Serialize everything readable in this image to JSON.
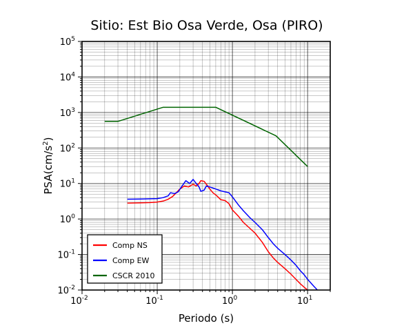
{
  "chart_data": {
    "type": "line",
    "title": "Sitio: Est Bio Osa Verde, Osa (PIRO)",
    "xlabel": "Periodo (s)",
    "ylabel_base": "PSA(cm/s",
    "ylabel_sup": "2",
    "ylabel_end": ")",
    "x_scale": "log",
    "y_scale": "log",
    "xlim": [
      0.01,
      20
    ],
    "ylim": [
      0.01,
      100000
    ],
    "grid": true,
    "legend_position": "bottom-left",
    "x_ticks": [
      {
        "base": "10",
        "exp": "-2",
        "value": 0.01
      },
      {
        "base": "10",
        "exp": "-1",
        "value": 0.1
      },
      {
        "base": "10",
        "exp": "0",
        "value": 1
      },
      {
        "base": "10",
        "exp": "1",
        "value": 10
      }
    ],
    "y_ticks": [
      {
        "base": "10",
        "exp": "-2",
        "value": 0.01
      },
      {
        "base": "10",
        "exp": "-1",
        "value": 0.1
      },
      {
        "base": "10",
        "exp": "0",
        "value": 1
      },
      {
        "base": "10",
        "exp": "1",
        "value": 10
      },
      {
        "base": "10",
        "exp": "2",
        "value": 100
      },
      {
        "base": "10",
        "exp": "3",
        "value": 1000
      },
      {
        "base": "10",
        "exp": "4",
        "value": 10000
      },
      {
        "base": "10",
        "exp": "5",
        "value": 100000
      }
    ],
    "series": [
      {
        "name": "Comp NS",
        "color": "#ff0000",
        "points": [
          [
            0.04,
            2.8
          ],
          [
            0.06,
            2.85
          ],
          [
            0.08,
            2.9
          ],
          [
            0.1,
            3.0
          ],
          [
            0.12,
            3.2
          ],
          [
            0.14,
            3.6
          ],
          [
            0.16,
            4.3
          ],
          [
            0.18,
            5.5
          ],
          [
            0.2,
            7.0
          ],
          [
            0.23,
            8.5
          ],
          [
            0.26,
            8.0
          ],
          [
            0.3,
            9.5
          ],
          [
            0.33,
            8.5
          ],
          [
            0.36,
            10.0
          ],
          [
            0.38,
            12.0
          ],
          [
            0.42,
            11.5
          ],
          [
            0.46,
            9.0
          ],
          [
            0.5,
            7.0
          ],
          [
            0.55,
            5.5
          ],
          [
            0.62,
            4.5
          ],
          [
            0.7,
            3.5
          ],
          [
            0.8,
            3.3
          ],
          [
            0.9,
            2.7
          ],
          [
            1.0,
            1.8
          ],
          [
            1.2,
            1.2
          ],
          [
            1.4,
            0.8
          ],
          [
            1.7,
            0.55
          ],
          [
            2.0,
            0.4
          ],
          [
            2.5,
            0.22
          ],
          [
            3.0,
            0.12
          ],
          [
            3.5,
            0.08
          ],
          [
            4.0,
            0.06
          ],
          [
            5.0,
            0.04
          ],
          [
            6.0,
            0.028
          ],
          [
            7.0,
            0.02
          ],
          [
            8.0,
            0.015
          ],
          [
            9.0,
            0.012
          ],
          [
            10.0,
            0.01
          ]
        ]
      },
      {
        "name": "Comp EW",
        "color": "#0000ff",
        "points": [
          [
            0.04,
            3.6
          ],
          [
            0.06,
            3.65
          ],
          [
            0.08,
            3.7
          ],
          [
            0.1,
            3.75
          ],
          [
            0.12,
            4.0
          ],
          [
            0.14,
            4.5
          ],
          [
            0.15,
            5.5
          ],
          [
            0.17,
            5.2
          ],
          [
            0.19,
            5.8
          ],
          [
            0.21,
            8.0
          ],
          [
            0.24,
            12.0
          ],
          [
            0.27,
            10.0
          ],
          [
            0.3,
            13.0
          ],
          [
            0.33,
            10.0
          ],
          [
            0.36,
            8.0
          ],
          [
            0.38,
            6.0
          ],
          [
            0.42,
            6.5
          ],
          [
            0.45,
            8.5
          ],
          [
            0.5,
            8.0
          ],
          [
            0.6,
            7.0
          ],
          [
            0.7,
            6.2
          ],
          [
            0.8,
            5.8
          ],
          [
            0.9,
            5.5
          ],
          [
            1.0,
            4.2
          ],
          [
            1.2,
            2.5
          ],
          [
            1.4,
            1.7
          ],
          [
            1.7,
            1.1
          ],
          [
            2.0,
            0.8
          ],
          [
            2.5,
            0.5
          ],
          [
            3.0,
            0.3
          ],
          [
            3.5,
            0.2
          ],
          [
            4.0,
            0.15
          ],
          [
            5.0,
            0.1
          ],
          [
            6.0,
            0.07
          ],
          [
            7.0,
            0.05
          ],
          [
            8.0,
            0.035
          ],
          [
            9.0,
            0.027
          ],
          [
            10.0,
            0.02
          ],
          [
            12.0,
            0.013
          ],
          [
            13.5,
            0.01
          ]
        ]
      },
      {
        "name": "CSCR 2010",
        "color": "#006400",
        "points": [
          [
            0.02,
            560
          ],
          [
            0.03,
            560
          ],
          [
            0.12,
            1400
          ],
          [
            0.6,
            1400
          ],
          [
            3.8,
            220
          ],
          [
            10.0,
            30
          ]
        ]
      }
    ]
  }
}
